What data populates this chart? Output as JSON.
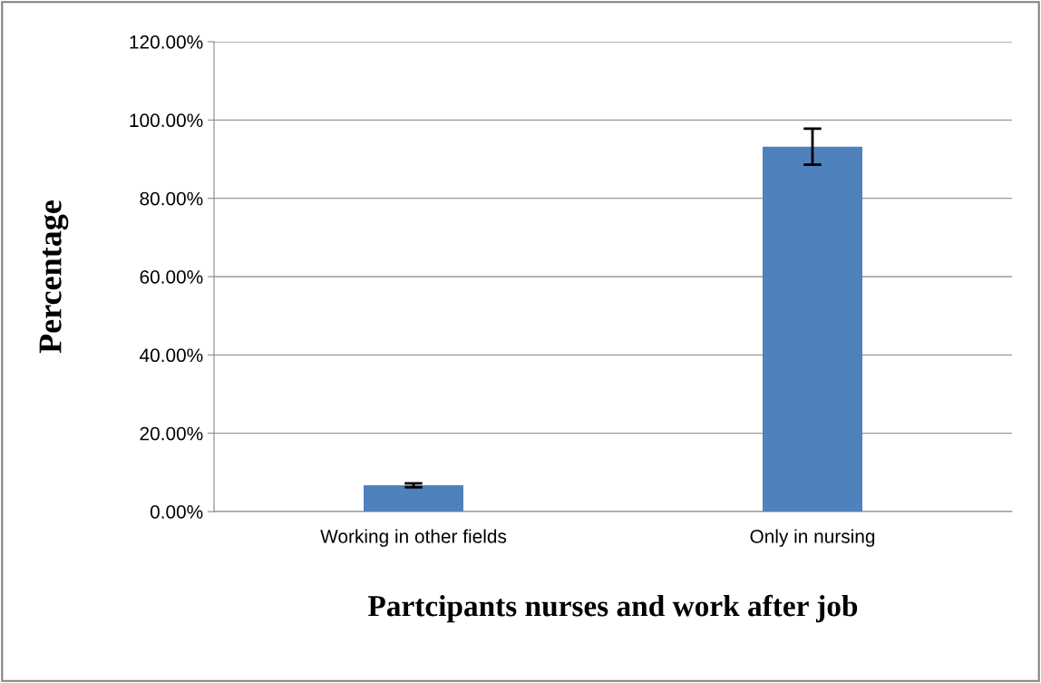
{
  "chart_data": {
    "type": "bar",
    "xlabel": "Partcipants nurses and work after job",
    "ylabel": "Percentage",
    "categories": [
      "Working in other fields",
      "Only in nursing"
    ],
    "values": [
      6.7,
      93.2
    ],
    "errors": [
      0.5,
      4.6
    ],
    "color": "#4f81bd",
    "ylim": [
      0,
      120
    ],
    "yticks": [
      {
        "value": 0,
        "label": "0.00%"
      },
      {
        "value": 20,
        "label": "20.00%"
      },
      {
        "value": 40,
        "label": "40.00%"
      },
      {
        "value": 60,
        "label": "60.00%"
      },
      {
        "value": 80,
        "label": "80.00%"
      },
      {
        "value": 100,
        "label": "100.00%"
      },
      {
        "value": 120,
        "label": "120.00%"
      }
    ],
    "grid": "y"
  }
}
